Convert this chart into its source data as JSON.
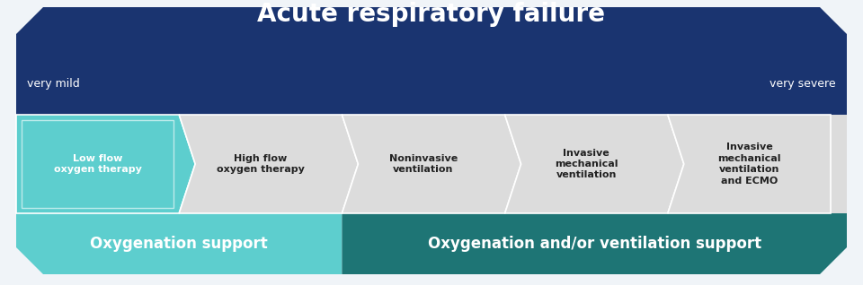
{
  "title": "Acute respiratory failure",
  "very_mild": "very mild",
  "very_severe": "very severe",
  "bg_color": "#f0f4f8",
  "dark_blue": "#1a3470",
  "teal_light": "#5dcece",
  "teal_mid": "#4db8b8",
  "teal_dark": "#1e7575",
  "arrow_bg": "#dcdcdc",
  "arrow_steps": [
    {
      "label": "Low flow\noxygen therapy",
      "color": "#5dcece",
      "text_color": "#ffffff"
    },
    {
      "label": "High flow\noxygen therapy",
      "color": "#dcdcdc",
      "text_color": "#222222"
    },
    {
      "label": "Noninvasive\nventilation",
      "color": "#dcdcdc",
      "text_color": "#222222"
    },
    {
      "label": "Invasive\nmechanical\nventilation",
      "color": "#dcdcdc",
      "text_color": "#222222"
    },
    {
      "label": "Invasive\nmechanical\nventilation\nand ECMO",
      "color": "#dcdcdc",
      "text_color": "#222222"
    }
  ],
  "bottom_left_label": "Oxygenation support",
  "bottom_right_label": "Oxygenation and/or ventilation support",
  "bottom_left_color": "#5dcece",
  "bottom_right_color": "#1e7575",
  "fig_w": 9.6,
  "fig_h": 3.18,
  "dpi": 100
}
